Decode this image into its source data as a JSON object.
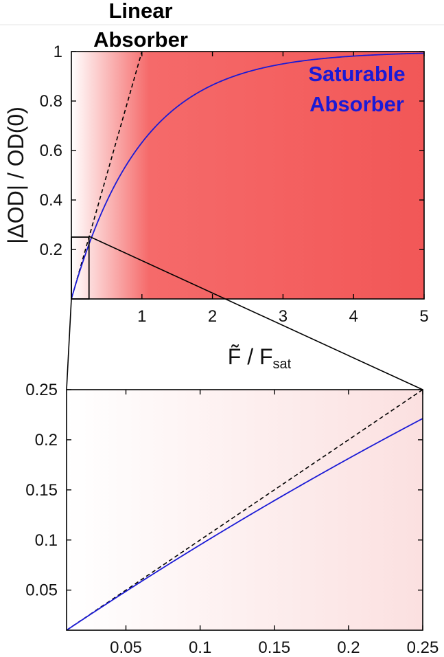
{
  "colors": {
    "saturable_curve": "#1a1ad6",
    "linear_line": "#000000",
    "background_shade": "#f25757",
    "annotation_blue": "#1a1ad6"
  },
  "chart_data": [
    {
      "type": "line",
      "panel": "main",
      "xlabel_main": "F̃ / F",
      "xlabel_sub": "sat",
      "ylabel": "|ΔOD| / OD(0)",
      "xlim": [
        0,
        5
      ],
      "ylim": [
        0,
        1
      ],
      "x_ticks": [
        1,
        2,
        3,
        4,
        5
      ],
      "x_tick_labels": [
        "1",
        "2",
        "3",
        "4",
        "5"
      ],
      "y_ticks": [
        0.2,
        0.4,
        0.6,
        0.8,
        1
      ],
      "y_tick_labels": [
        "0.2",
        "0.4",
        "0.6",
        "0.8",
        "1"
      ],
      "background": "horizontal gradient from white (x=0) to red (x≈2 and beyond)",
      "inset_box": {
        "x": [
          0,
          0.25
        ],
        "y": [
          0,
          0.25
        ]
      },
      "annotations": [
        {
          "id": "linear",
          "lines": [
            "Linear",
            "Absorber"
          ]
        },
        {
          "id": "saturable",
          "lines": [
            "Saturable",
            "Absorber"
          ]
        }
      ],
      "series": [
        {
          "style": "dashed",
          "color": "#000000",
          "formula": "y = x",
          "x": [
            0,
            1
          ],
          "y": [
            0,
            1
          ]
        },
        {
          "style": "solid",
          "color": "#1a1ad6",
          "formula": "y = 1 - exp(-x)",
          "x": [
            0,
            0.25,
            0.5,
            1,
            1.5,
            2,
            2.5,
            3,
            4,
            5
          ],
          "y": [
            0,
            0.221,
            0.393,
            0.632,
            0.777,
            0.865,
            0.918,
            0.95,
            0.982,
            0.993
          ]
        }
      ]
    },
    {
      "type": "line",
      "panel": "zoom",
      "xlim": [
        0.01,
        0.25
      ],
      "ylim": [
        0.01,
        0.25
      ],
      "x_ticks": [
        0.05,
        0.1,
        0.15,
        0.2,
        0.25
      ],
      "x_tick_labels": [
        "0.05",
        "0.1",
        "0.15",
        "0.2",
        "0.25"
      ],
      "y_ticks": [
        0.05,
        0.1,
        0.15,
        0.2,
        0.25
      ],
      "y_tick_labels": [
        "0.05",
        "0.1",
        "0.15",
        "0.2",
        "0.25"
      ],
      "background": "faint horizontal gradient from white to light red",
      "series": [
        {
          "style": "dashed",
          "color": "#000000",
          "formula": "y = x",
          "x": [
            0.01,
            0.25
          ],
          "y": [
            0.01,
            0.25
          ]
        },
        {
          "style": "solid",
          "color": "#1a1ad6",
          "formula": "y = 1 - exp(-x)",
          "x": [
            0.01,
            0.05,
            0.1,
            0.15,
            0.2,
            0.25
          ],
          "y": [
            0.01,
            0.049,
            0.095,
            0.139,
            0.181,
            0.221
          ]
        }
      ]
    }
  ]
}
